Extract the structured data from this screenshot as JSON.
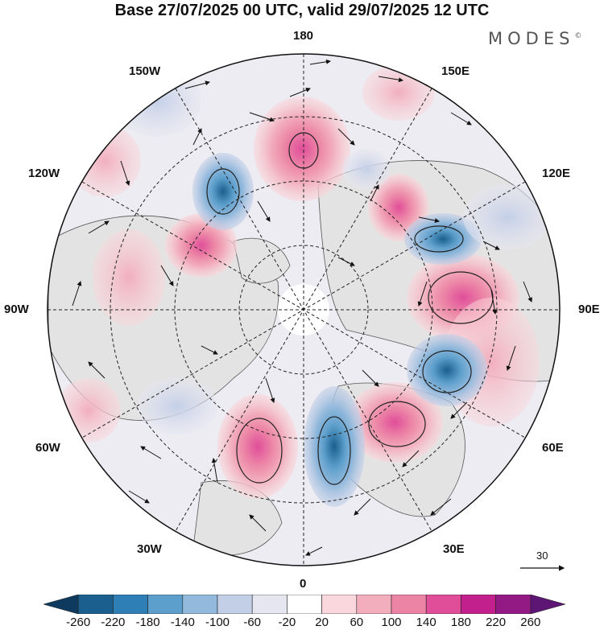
{
  "title": "Base 27/07/2025 00 UTC, valid 29/07/2025 12 UTC",
  "brand": {
    "name": "MODES",
    "mark": "©"
  },
  "longitude_labels": {
    "lon_180": "180",
    "lon_150w": "150W",
    "lon_150e": "150E",
    "lon_120w": "120W",
    "lon_120e": "120E",
    "lon_90w": "90W",
    "lon_90e": "90E",
    "lon_60w": "60W",
    "lon_60e": "60E",
    "lon_30w": "30W",
    "lon_30e": "30E",
    "lon_0": "0"
  },
  "wind_reference": {
    "value": "30"
  },
  "colorbar": {
    "ticks": [
      "-260",
      "-220",
      "-180",
      "-140",
      "-100",
      "-60",
      "-20",
      "20",
      "60",
      "100",
      "140",
      "180",
      "220",
      "260"
    ],
    "colors": [
      "#0d3a5e",
      "#1a5f8e",
      "#2d7fb6",
      "#5d9fcc",
      "#93b9dc",
      "#c3cfe7",
      "#e6e6f1",
      "#ffffff",
      "#f9d7dc",
      "#f2aebd",
      "#ec84a6",
      "#e04e9a",
      "#c2208c",
      "#931a84",
      "#5e1674"
    ]
  },
  "colors": {
    "positive": "#e8527f",
    "negative": "#3a7bb6",
    "land": "#e3e3e3"
  }
}
